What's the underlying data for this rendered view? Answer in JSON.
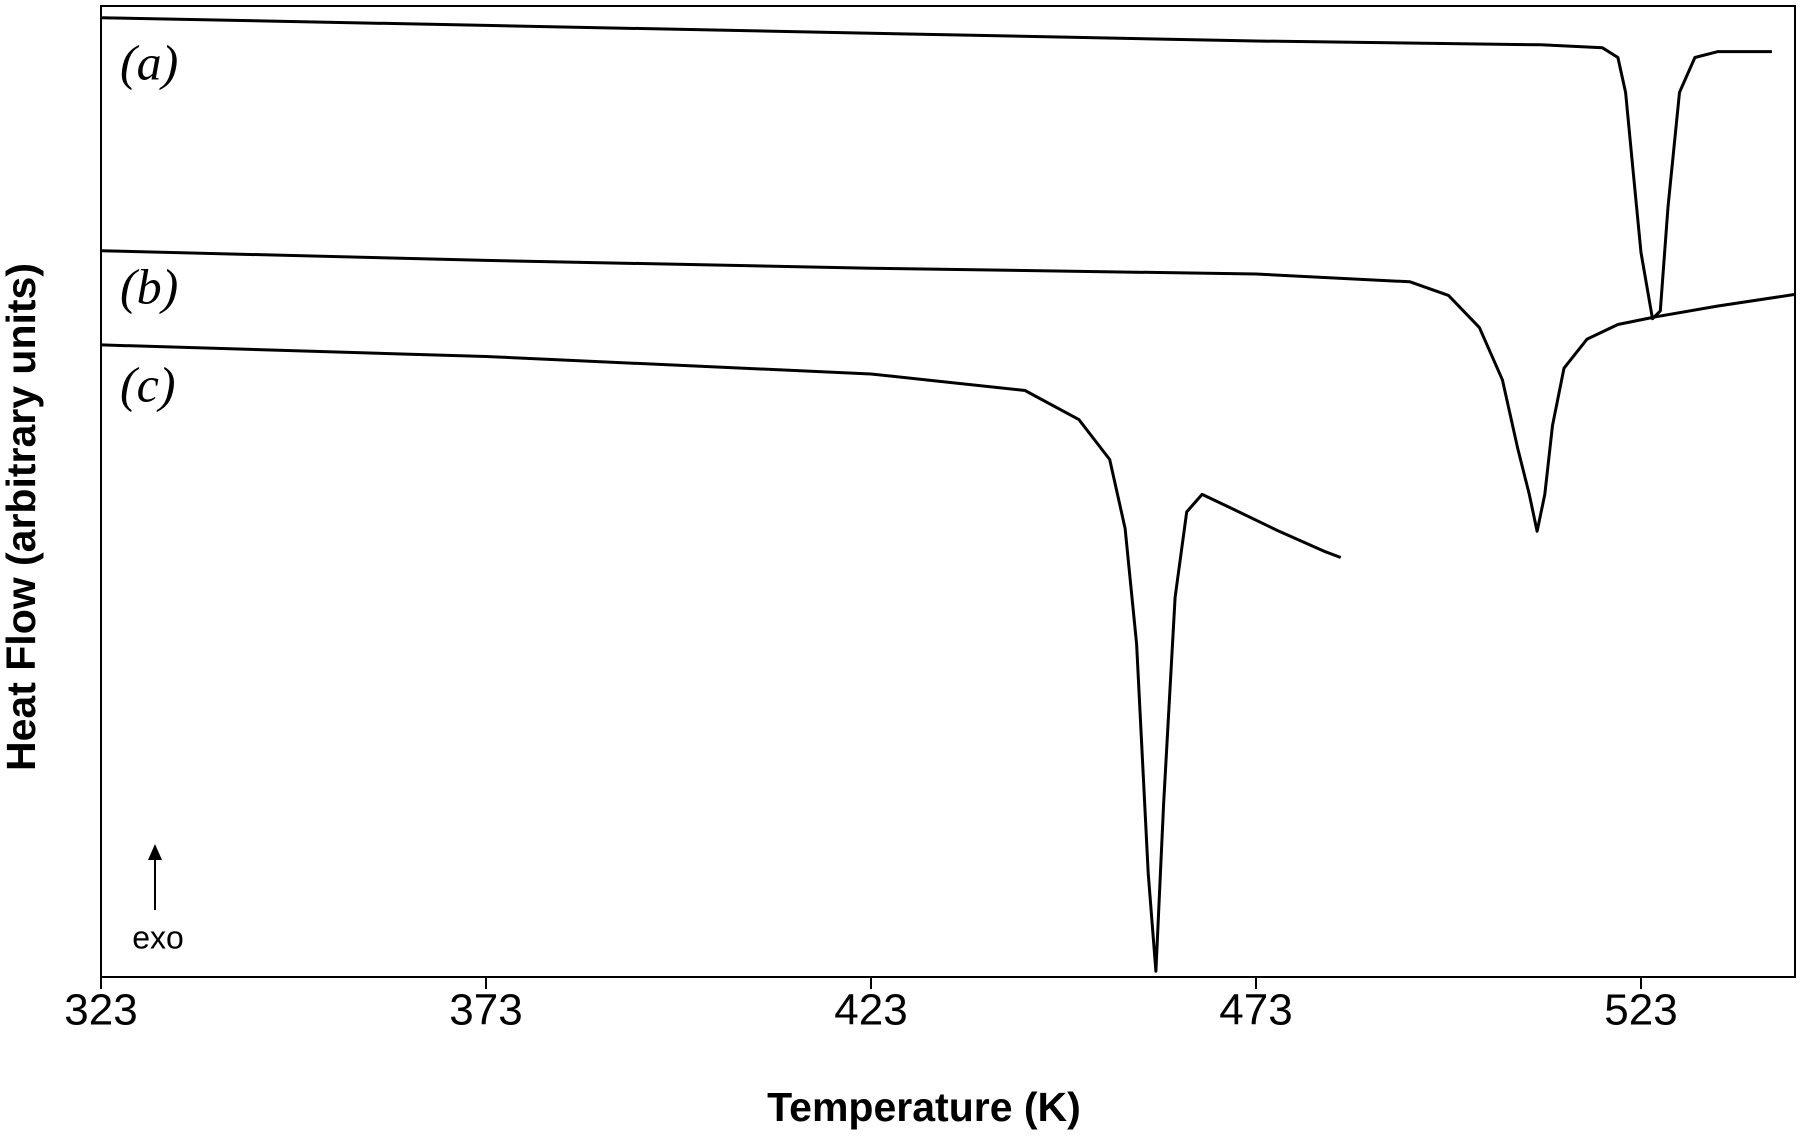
{
  "chart_data": {
    "type": "line",
    "x_label": "Temperature (K)",
    "y_label": "Heat Flow (arbitrary units)",
    "xlim": [
      323,
      543
    ],
    "xticks": [
      323,
      373,
      423,
      473,
      523
    ],
    "ylim": [
      0,
      100
    ],
    "series": [
      {
        "name": "(a)",
        "color": "#000000",
        "x": [
          323,
          373,
          423,
          473,
          510,
          518,
          520,
          521,
          522,
          523,
          524.5,
          525.5,
          526.5,
          528,
          530,
          533,
          540
        ],
        "values": [
          98.8,
          98.0,
          97.2,
          96.4,
          96.0,
          95.7,
          94.7,
          91.1,
          82.8,
          74.6,
          67.8,
          68.6,
          79.3,
          91.1,
          94.7,
          95.3,
          95.3
        ]
      },
      {
        "name": "(b)",
        "color": "#000000",
        "x": [
          323,
          373,
          423,
          473,
          493,
          498,
          502,
          505,
          507,
          508.5,
          509.5,
          510.5,
          511.5,
          513,
          516,
          520,
          525,
          533,
          543
        ],
        "values": [
          74.8,
          73.8,
          73.0,
          72.4,
          71.6,
          70.2,
          66.9,
          61.5,
          54.4,
          49.7,
          45.9,
          49.7,
          56.8,
          62.7,
          65.7,
          67.2,
          68.0,
          69.1,
          70.3
        ]
      },
      {
        "name": "(c)",
        "color": "#000000",
        "x": [
          323,
          373,
          423,
          443,
          450,
          454,
          456,
          457.5,
          459,
          460,
          461,
          462.5,
          464,
          466,
          470,
          476,
          482,
          484
        ],
        "values": [
          65.1,
          63.9,
          62.1,
          60.4,
          57.4,
          53.3,
          46.2,
          34.3,
          10.7,
          0.6,
          17.8,
          39.1,
          47.9,
          49.7,
          48.2,
          45.9,
          43.8,
          43.2
        ]
      }
    ],
    "annotations": [
      "exo"
    ]
  }
}
